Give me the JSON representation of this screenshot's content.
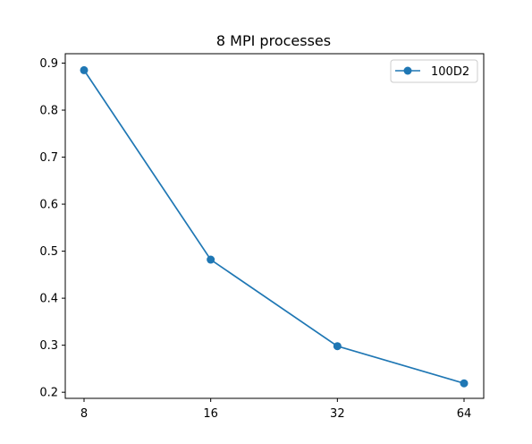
{
  "chart_data": {
    "type": "line",
    "title": "8 MPI processes",
    "xlabel": "",
    "ylabel": "",
    "x_scale": "log2",
    "x": [
      8,
      16,
      32,
      64
    ],
    "x_tick_labels": [
      "8",
      "16",
      "32",
      "64"
    ],
    "y_ticks": [
      0.2,
      0.3,
      0.4,
      0.5,
      0.6,
      0.7,
      0.8,
      0.9
    ],
    "y_tick_labels": [
      "0.2",
      "0.3",
      "0.4",
      "0.5",
      "0.6",
      "0.7",
      "0.8",
      "0.9"
    ],
    "ylim": [
      0.187,
      0.92
    ],
    "grid": false,
    "legend_position": "top-right",
    "series": [
      {
        "name": "100D2",
        "values": [
          0.885,
          0.482,
          0.298,
          0.219
        ],
        "color": "#1f77b4",
        "marker": "circle"
      }
    ]
  }
}
